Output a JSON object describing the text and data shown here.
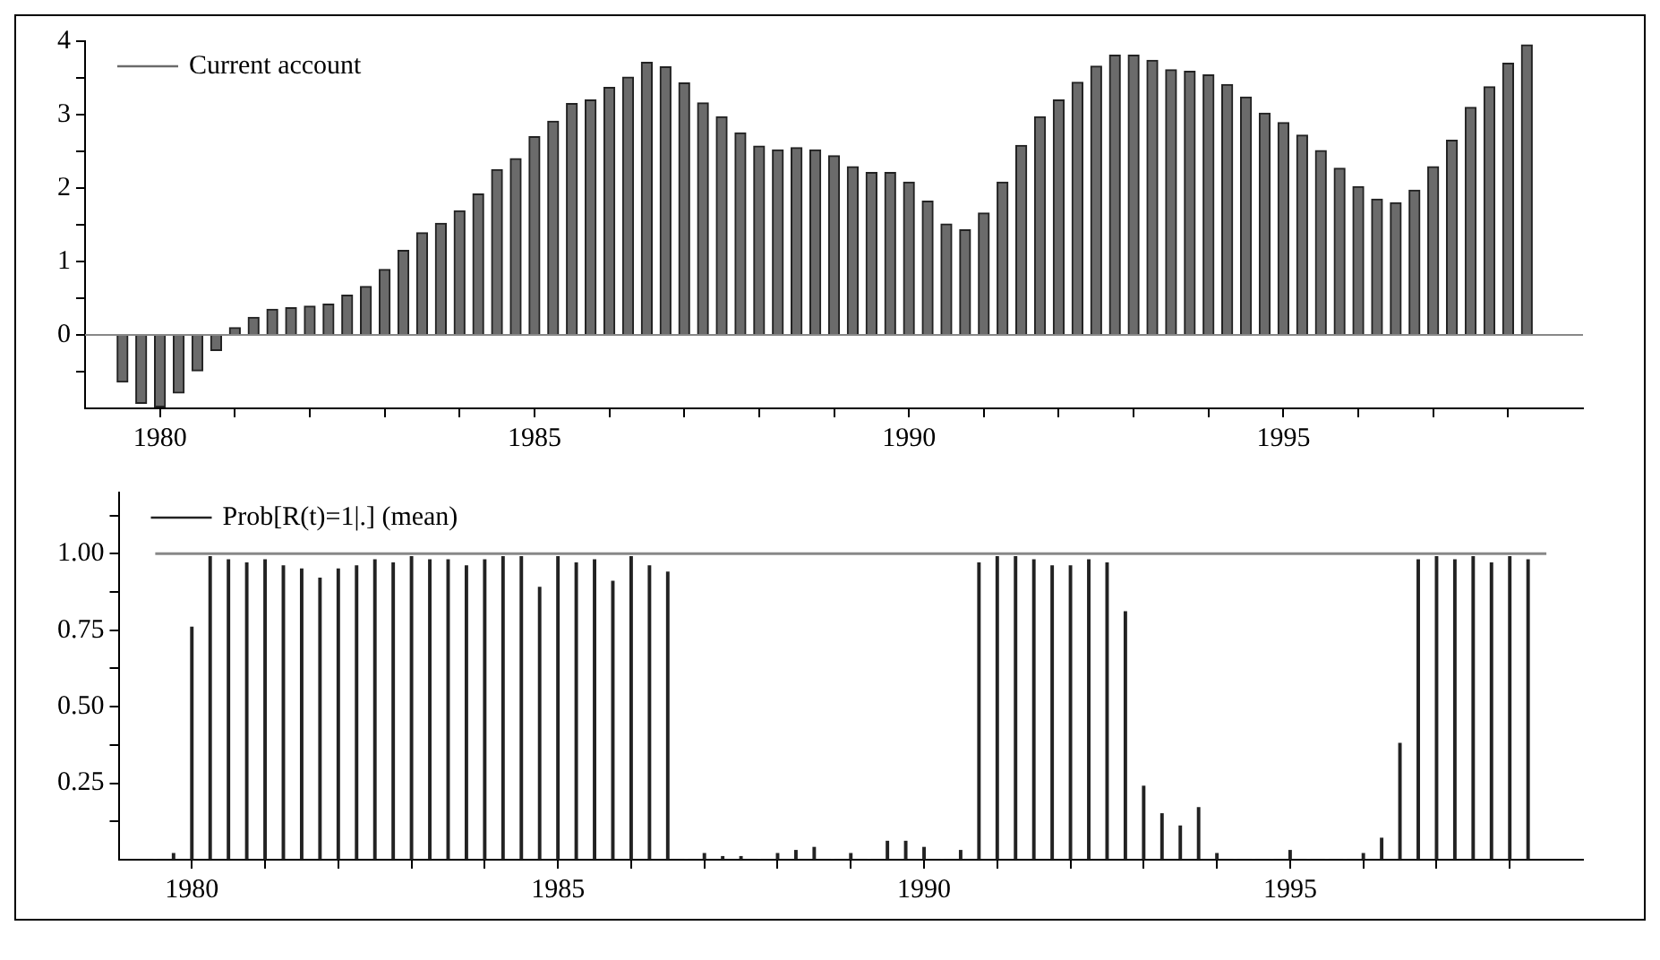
{
  "chart_data": [
    {
      "type": "bar",
      "x": [
        1979.5,
        1979.75,
        1980,
        1980.25,
        1980.5,
        1980.75,
        1981,
        1981.25,
        1981.5,
        1981.75,
        1982,
        1982.25,
        1982.5,
        1982.75,
        1983,
        1983.25,
        1983.5,
        1983.75,
        1984,
        1984.25,
        1984.5,
        1984.75,
        1985,
        1985.25,
        1985.5,
        1985.75,
        1986,
        1986.25,
        1986.5,
        1986.75,
        1987,
        1987.25,
        1987.5,
        1987.75,
        1988,
        1988.25,
        1988.5,
        1988.75,
        1989,
        1989.25,
        1989.5,
        1989.75,
        1990,
        1990.25,
        1990.5,
        1990.75,
        1991,
        1991.25,
        1991.5,
        1991.75,
        1992,
        1992.25,
        1992.5,
        1992.75,
        1993,
        1993.25,
        1993.5,
        1993.75,
        1994,
        1994.25,
        1994.5,
        1994.75,
        1995,
        1995.25,
        1995.5,
        1995.75,
        1996,
        1996.25,
        1996.5,
        1996.75,
        1997,
        1997.25,
        1997.5,
        1997.75,
        1998,
        1998.25
      ],
      "series": [
        {
          "name": "Current account",
          "color": "#6b6b6b",
          "values": [
            -0.64,
            -0.93,
            -0.98,
            -0.79,
            -0.49,
            -0.21,
            0.1,
            0.24,
            0.35,
            0.37,
            0.39,
            0.42,
            0.54,
            0.66,
            0.89,
            1.15,
            1.39,
            1.52,
            1.69,
            1.92,
            2.25,
            2.4,
            2.7,
            2.91,
            3.15,
            3.2,
            3.37,
            3.51,
            3.71,
            3.65,
            3.43,
            3.16,
            2.97,
            2.75,
            2.57,
            2.52,
            2.55,
            2.52,
            2.44,
            2.29,
            2.21,
            2.21,
            2.08,
            1.82,
            1.51,
            1.43,
            1.66,
            2.08,
            2.58,
            2.97,
            3.2,
            3.44,
            3.66,
            3.81,
            3.81,
            3.74,
            3.61,
            3.59,
            3.54,
            3.41,
            3.24,
            3.02,
            2.89,
            2.72,
            2.51,
            2.27,
            2.02,
            1.85,
            1.8,
            1.97,
            2.29,
            2.65,
            3.1,
            3.38,
            3.7,
            3.95
          ]
        }
      ],
      "xlim": [
        1979,
        1999
      ],
      "xticks": [
        1980,
        {
          "value": 1981,
          "label": null
        },
        {
          "value": 1982,
          "label": null
        },
        {
          "value": 1983,
          "label": null
        },
        {
          "value": 1984,
          "label": null
        },
        1985,
        {
          "value": 1986,
          "label": null
        },
        {
          "value": 1987,
          "label": null
        },
        {
          "value": 1988,
          "label": null
        },
        {
          "value": 1989,
          "label": null
        },
        1990,
        {
          "value": 1991,
          "label": null
        },
        {
          "value": 1992,
          "label": null
        },
        {
          "value": 1993,
          "label": null
        },
        {
          "value": 1994,
          "label": null
        },
        1995,
        {
          "value": 1996,
          "label": null
        },
        {
          "value": 1997,
          "label": null
        },
        {
          "value": 1998,
          "label": null
        }
      ],
      "ylim": [
        -1,
        4
      ],
      "yticks": [
        {
          "value": -0.5,
          "label": null
        },
        0,
        {
          "value": 0.5,
          "label": null
        },
        1,
        {
          "value": 1.5,
          "label": null
        },
        2,
        {
          "value": 2.5,
          "label": null
        },
        3,
        {
          "value": 3.5,
          "label": null
        },
        4
      ],
      "ref_lines": [
        {
          "axis": "y",
          "value": 0,
          "color": "#888888"
        }
      ],
      "legend": "top left"
    },
    {
      "type": "bar",
      "x": [
        1979.5,
        1979.75,
        1980,
        1980.25,
        1980.5,
        1980.75,
        1981,
        1981.25,
        1981.5,
        1981.75,
        1982,
        1982.25,
        1982.5,
        1982.75,
        1983,
        1983.25,
        1983.5,
        1983.75,
        1984,
        1984.25,
        1984.5,
        1984.75,
        1985,
        1985.25,
        1985.5,
        1985.75,
        1986,
        1986.25,
        1986.5,
        1986.75,
        1987,
        1987.25,
        1987.5,
        1987.75,
        1988,
        1988.25,
        1988.5,
        1988.75,
        1989,
        1989.25,
        1989.5,
        1989.75,
        1990,
        1990.25,
        1990.5,
        1990.75,
        1991,
        1991.25,
        1991.5,
        1991.75,
        1992,
        1992.25,
        1992.5,
        1992.75,
        1993,
        1993.25,
        1993.5,
        1993.75,
        1994,
        1994.25,
        1994.5,
        1994.75,
        1995,
        1995.25,
        1995.5,
        1995.75,
        1996,
        1996.25,
        1996.5,
        1996.75,
        1997,
        1997.25,
        1997.5,
        1997.75,
        1998,
        1998.25
      ],
      "series": [
        {
          "name": "Prob[R(t)=1|.] (mean)",
          "color": "#222222",
          "values": [
            0,
            0.02,
            0.76,
            0.99,
            0.98,
            0.97,
            0.98,
            0.96,
            0.95,
            0.92,
            0.95,
            0.96,
            0.98,
            0.97,
            0.99,
            0.98,
            0.98,
            0.96,
            0.98,
            0.99,
            0.99,
            0.89,
            0.99,
            0.97,
            0.98,
            0.91,
            0.99,
            0.96,
            0.94,
            0,
            0.02,
            0.01,
            0.01,
            0,
            0.02,
            0.03,
            0.04,
            0,
            0.02,
            0,
            0.06,
            0.06,
            0.04,
            0,
            0.03,
            0.97,
            0.99,
            0.99,
            0.98,
            0.96,
            0.96,
            0.98,
            0.97,
            0.81,
            0.24,
            0.15,
            0.11,
            0.17,
            0.02,
            0,
            0,
            0,
            0.03,
            0,
            0,
            0,
            0.02,
            0.07,
            0.38,
            0.98,
            0.99,
            0.98,
            0.99,
            0.97,
            0.99,
            0.98
          ]
        },
        {
          "type": "line",
          "x": [
            1979.5,
            1998.5
          ],
          "color": "#888888",
          "values": [
            1,
            1
          ]
        }
      ],
      "xlim": [
        1979,
        1999
      ],
      "xticks": [
        1980,
        {
          "value": 1981,
          "label": null
        },
        {
          "value": 1982,
          "label": null
        },
        {
          "value": 1983,
          "label": null
        },
        {
          "value": 1984,
          "label": null
        },
        1985,
        {
          "value": 1986,
          "label": null
        },
        {
          "value": 1987,
          "label": null
        },
        {
          "value": 1988,
          "label": null
        },
        {
          "value": 1989,
          "label": null
        },
        1990,
        {
          "value": 1991,
          "label": null
        },
        {
          "value": 1992,
          "label": null
        },
        {
          "value": 1993,
          "label": null
        },
        {
          "value": 1994,
          "label": null
        },
        1995,
        {
          "value": 1996,
          "label": null
        },
        {
          "value": 1997,
          "label": null
        },
        {
          "value": 1998,
          "label": null
        }
      ],
      "ylim": [
        0,
        1.2
      ],
      "yticks": [
        {
          "value": 0.125,
          "label": null
        },
        {
          "value": 0.25,
          "label": "0.25"
        },
        {
          "value": 0.375,
          "label": null
        },
        {
          "value": 0.5,
          "label": "0.50"
        },
        {
          "value": 0.625,
          "label": null
        },
        {
          "value": 0.75,
          "label": "0.75"
        },
        {
          "value": 0.875,
          "label": null
        },
        {
          "value": 1,
          "label": "1.00"
        },
        {
          "value": 1.125,
          "label": null
        }
      ],
      "legend": "top left"
    }
  ]
}
